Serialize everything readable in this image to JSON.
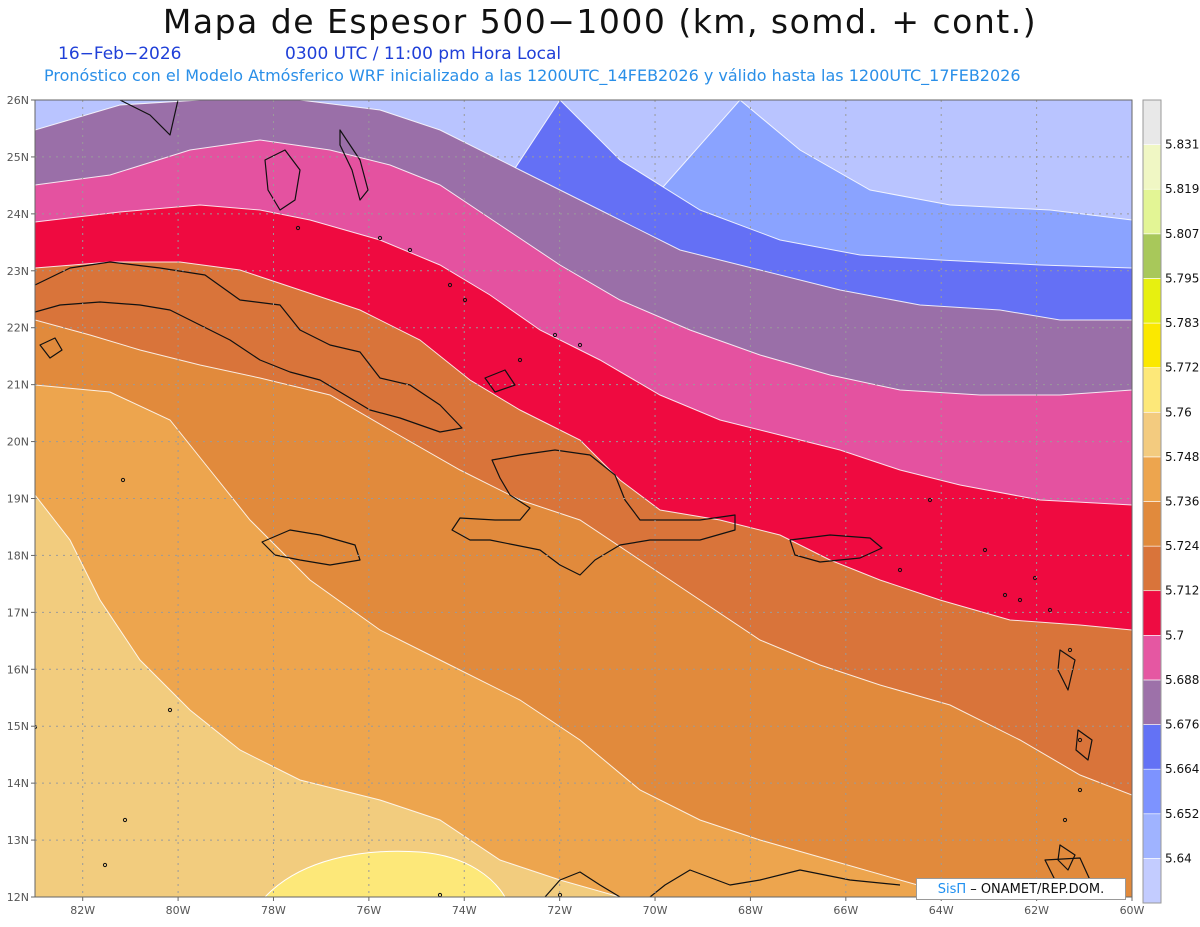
{
  "header": {
    "title": "Mapa de Espesor 500−1000 (km, somd. + cont.)",
    "date": "16−Feb−2026",
    "time": "0300 UTC / 11:00 pm Hora Local",
    "subtitle": "Pronóstico con el Modelo Atmósferico WRF inicializado a las 1200UTC_14FEB2026 y válido hasta las  1200UTC_17FEB2026"
  },
  "map": {
    "lon_range": [
      -83,
      -60
    ],
    "lat_range": [
      12,
      26
    ],
    "lat_ticks": [
      "12N",
      "13N",
      "14N",
      "15N",
      "16N",
      "17N",
      "18N",
      "19N",
      "20N",
      "21N",
      "22N",
      "23N",
      "24N",
      "25N",
      "26N"
    ],
    "lon_ticks": [
      "82W",
      "80W",
      "78W",
      "76W",
      "74W",
      "72W",
      "70W",
      "68W",
      "66W",
      "64W",
      "62W",
      "60W"
    ],
    "grid": true,
    "contour_bands": [
      {
        "level": 5.664,
        "color": "#6470f5"
      },
      {
        "level": 5.676,
        "color": "#9a6fa8"
      },
      {
        "level": 5.688,
        "color": "#e452a0"
      },
      {
        "level": 5.7,
        "color": "#ef0a40"
      },
      {
        "level": 5.712,
        "color": "#d9743a"
      },
      {
        "level": 5.724,
        "color": "#e18a3c"
      },
      {
        "level": 5.736,
        "color": "#eda54e"
      },
      {
        "level": 5.748,
        "color": "#f2cc7e"
      },
      {
        "level": 5.76,
        "color": "#fde879"
      }
    ],
    "top_bands": [
      {
        "level": 5.64,
        "color": "#b9c4ff"
      },
      {
        "level": 5.652,
        "color": "#8aa3ff"
      }
    ]
  },
  "colorbar": {
    "labels": [
      "5.64",
      "5.652",
      "5.664",
      "5.676",
      "5.688",
      "5.7",
      "5.712",
      "5.724",
      "5.736",
      "5.748",
      "5.76",
      "5.772",
      "5.783",
      "5.795",
      "5.807",
      "5.819",
      "5.831"
    ],
    "colors": [
      "#c3ccff",
      "#9fb3ff",
      "#7d93ff",
      "#6372f5",
      "#9d71a9",
      "#e557a2",
      "#ee0c42",
      "#d9743a",
      "#e18a3c",
      "#eda54e",
      "#f3cb7f",
      "#fde879",
      "#fbe800",
      "#e7f010",
      "#a8c85a",
      "#e3f595",
      "#f0f7c4",
      "#e8e8e8"
    ]
  },
  "credit": {
    "brand": "SisΠ",
    "text": "– ONAMET/REP.DOM."
  }
}
